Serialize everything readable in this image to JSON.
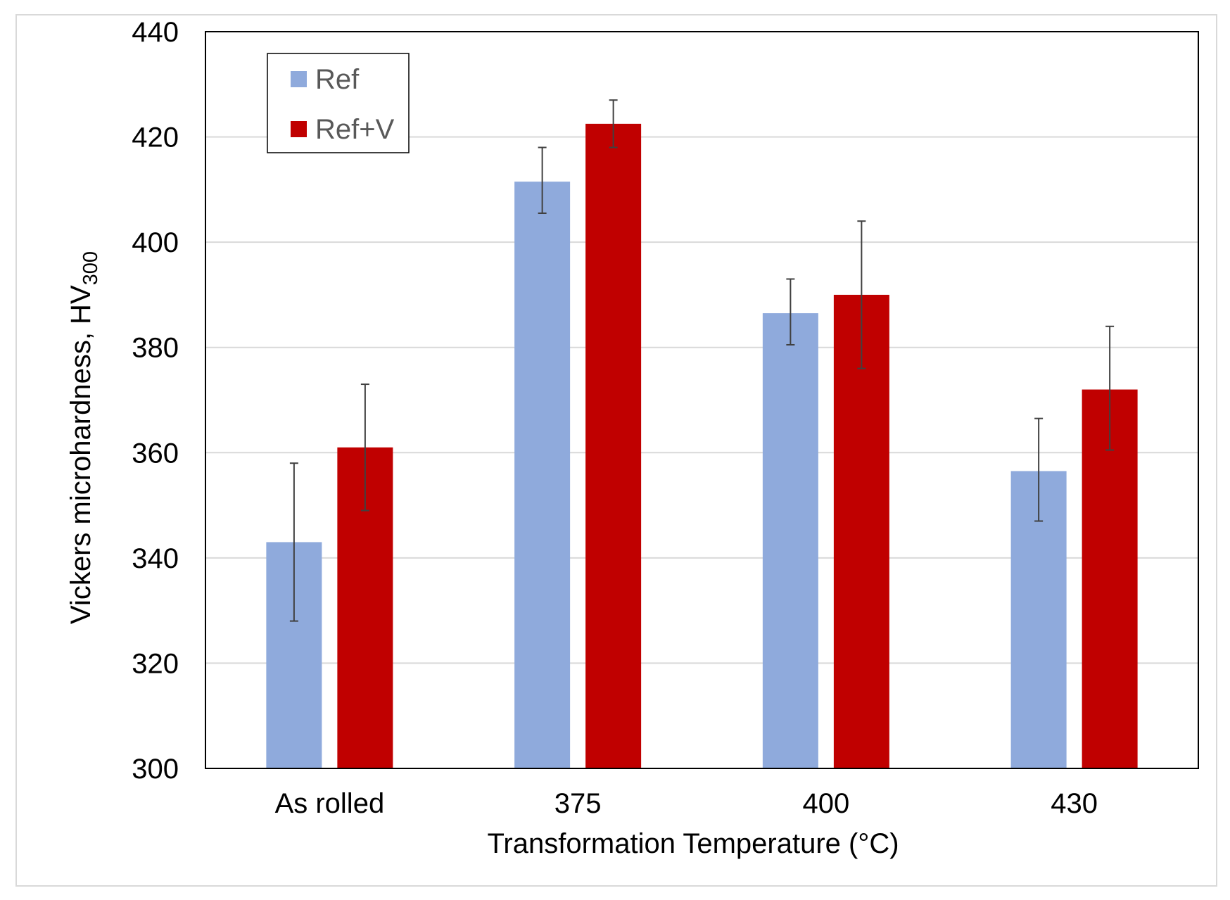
{
  "chart_data": {
    "type": "bar",
    "title": "",
    "xlabel": "Transformation Temperature (°C)",
    "ylabel": "Vickers microhardness, HV",
    "ylabel_subscript": "300",
    "categories": [
      "As rolled",
      "375",
      "400",
      "430"
    ],
    "series": [
      {
        "name": "Ref",
        "color": "#8faadc",
        "values": [
          343,
          411.5,
          386.5,
          356.5
        ],
        "error_low": [
          328,
          405.5,
          380.5,
          347
        ],
        "error_high": [
          358,
          418,
          393,
          366.5
        ]
      },
      {
        "name": "Ref+V",
        "color": "#c00000",
        "values": [
          361,
          422.5,
          390,
          372
        ],
        "error_low": [
          349,
          418,
          376,
          360.5
        ],
        "error_high": [
          373,
          427,
          404,
          384
        ]
      }
    ],
    "ylim": [
      300,
      440
    ],
    "yticks": [
      300,
      320,
      340,
      360,
      380,
      400,
      420,
      440
    ],
    "grid": true,
    "legend_position": "top-left"
  }
}
